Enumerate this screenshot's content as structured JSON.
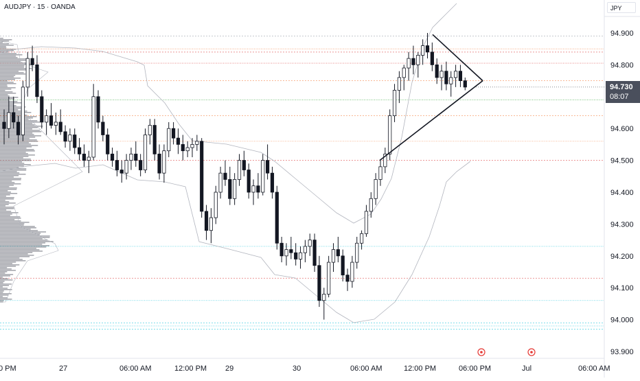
{
  "header": {
    "symbol": "AUDJPY · 15 · OANDA",
    "currency": "JPY"
  },
  "price_tag": {
    "price": "94.730",
    "countdown": "08:07"
  },
  "chart_data": {
    "type": "candlestick",
    "title": "AUDJPY · 15 · OANDA",
    "ylim": [
      93.88,
      94.98
    ],
    "y_ticks": [
      "94.900",
      "94.800",
      "94.700",
      "94.600",
      "94.500",
      "94.400",
      "94.300",
      "94.200",
      "94.100",
      "94.000",
      "93.900"
    ],
    "x_ticks": [
      "0 PM",
      "27",
      "06:00 AM",
      "12:00 PM",
      "29",
      "30",
      "06:00 AM",
      "12:00 PM",
      "06:00 PM",
      "Jul",
      "06:00 AM"
    ],
    "last_price": 94.73,
    "horizontal_levels": [
      {
        "price": 94.89,
        "color": "#b2b5be"
      },
      {
        "price": 94.85,
        "color": "#f7a072"
      },
      {
        "price": 94.84,
        "color": "#e57373"
      },
      {
        "price": 94.805,
        "color": "#e57373"
      },
      {
        "price": 94.75,
        "color": "#f7a072"
      },
      {
        "price": 94.69,
        "color": "#66bb6a"
      },
      {
        "price": 94.64,
        "color": "#f7a072"
      },
      {
        "price": 94.56,
        "color": "#f7a072"
      },
      {
        "price": 94.5,
        "color": "#e57373"
      },
      {
        "price": 94.23,
        "color": "#4dd0e1"
      },
      {
        "price": 94.13,
        "color": "#e57373"
      },
      {
        "price": 94.06,
        "color": "#4dd0e1"
      },
      {
        "price": 93.99,
        "color": "#4dd0e1"
      },
      {
        "price": 93.98,
        "color": "#4dd0e1"
      },
      {
        "price": 93.97,
        "color": "#4dd0e1"
      }
    ],
    "triangle_pattern": {
      "upper": [
        [
          94.895,
          94.75
        ]
      ],
      "lower": [
        [
          94.5,
          94.75
        ]
      ]
    },
    "event_markers": 2,
    "volume_profile": "left-side horizontal volume histogram",
    "envelope": "gray price channel band",
    "candles": [
      [
        94.62,
        94.66,
        94.55,
        94.6
      ],
      [
        94.6,
        94.7,
        94.57,
        94.65
      ],
      [
        94.65,
        94.7,
        94.6,
        94.62
      ],
      [
        94.62,
        94.64,
        94.55,
        94.58
      ],
      [
        94.58,
        94.75,
        94.56,
        94.73
      ],
      [
        94.73,
        94.84,
        94.7,
        94.82
      ],
      [
        94.82,
        94.86,
        94.78,
        94.8
      ],
      [
        94.8,
        94.83,
        94.68,
        94.7
      ],
      [
        94.7,
        94.72,
        94.6,
        94.62
      ],
      [
        94.62,
        94.66,
        94.58,
        94.64
      ],
      [
        94.64,
        94.68,
        94.6,
        94.61
      ],
      [
        94.61,
        94.65,
        94.58,
        94.62
      ],
      [
        94.62,
        94.66,
        94.58,
        94.59
      ],
      [
        94.59,
        94.61,
        94.54,
        94.56
      ],
      [
        94.56,
        94.6,
        94.53,
        94.58
      ],
      [
        94.58,
        94.6,
        94.52,
        94.54
      ],
      [
        94.54,
        94.57,
        94.5,
        94.52
      ],
      [
        94.52,
        94.55,
        94.48,
        94.5
      ],
      [
        94.5,
        94.53,
        94.46,
        94.51
      ],
      [
        94.51,
        94.74,
        94.5,
        94.7
      ],
      [
        94.7,
        94.72,
        94.6,
        94.62
      ],
      [
        94.62,
        94.64,
        94.56,
        94.58
      ],
      [
        94.58,
        94.6,
        94.5,
        94.52
      ],
      [
        94.52,
        94.54,
        94.48,
        94.5
      ],
      [
        94.5,
        94.53,
        94.45,
        94.47
      ],
      [
        94.47,
        94.5,
        94.43,
        94.46
      ],
      [
        94.46,
        94.52,
        94.44,
        94.5
      ],
      [
        94.5,
        94.54,
        94.47,
        94.52
      ],
      [
        94.52,
        94.56,
        94.48,
        94.5
      ],
      [
        94.5,
        94.52,
        94.45,
        94.47
      ],
      [
        94.47,
        94.6,
        94.46,
        94.58
      ],
      [
        94.58,
        94.63,
        94.55,
        94.61
      ],
      [
        94.61,
        94.63,
        94.5,
        94.52
      ],
      [
        94.52,
        94.55,
        94.44,
        94.46
      ],
      [
        94.46,
        94.55,
        94.43,
        94.53
      ],
      [
        94.53,
        94.62,
        94.51,
        94.6
      ],
      [
        94.6,
        94.62,
        94.55,
        94.57
      ],
      [
        94.57,
        94.6,
        94.52,
        94.55
      ],
      [
        94.55,
        94.58,
        94.5,
        94.53
      ],
      [
        94.53,
        94.56,
        94.51,
        94.54
      ],
      [
        94.54,
        94.57,
        94.51,
        94.55
      ],
      [
        94.55,
        94.58,
        94.53,
        94.56
      ],
      [
        94.56,
        94.57,
        94.32,
        94.34
      ],
      [
        94.34,
        94.36,
        94.25,
        94.28
      ],
      [
        94.28,
        94.35,
        94.24,
        94.32
      ],
      [
        94.32,
        94.42,
        94.3,
        94.4
      ],
      [
        94.4,
        94.48,
        94.38,
        94.46
      ],
      [
        94.46,
        94.5,
        94.42,
        94.44
      ],
      [
        94.44,
        94.48,
        94.36,
        94.38
      ],
      [
        94.38,
        94.46,
        94.36,
        94.44
      ],
      [
        94.44,
        94.52,
        94.42,
        94.5
      ],
      [
        94.5,
        94.53,
        94.45,
        94.47
      ],
      [
        94.47,
        94.49,
        94.38,
        94.4
      ],
      [
        94.4,
        94.44,
        94.36,
        94.42
      ],
      [
        94.42,
        94.46,
        94.38,
        94.4
      ],
      [
        94.4,
        94.52,
        94.39,
        94.5
      ],
      [
        94.5,
        94.55,
        94.44,
        94.46
      ],
      [
        94.46,
        94.48,
        94.38,
        94.4
      ],
      [
        94.4,
        94.42,
        94.22,
        94.24
      ],
      [
        94.24,
        94.26,
        94.18,
        94.2
      ],
      [
        94.2,
        94.24,
        94.17,
        94.22
      ],
      [
        94.22,
        94.26,
        94.19,
        94.21
      ],
      [
        94.21,
        94.24,
        94.17,
        94.19
      ],
      [
        94.19,
        94.23,
        94.16,
        94.21
      ],
      [
        94.21,
        94.25,
        94.18,
        94.23
      ],
      [
        94.23,
        94.27,
        94.2,
        94.25
      ],
      [
        94.25,
        94.27,
        94.15,
        94.17
      ],
      [
        94.17,
        94.2,
        94.04,
        94.06
      ],
      [
        94.06,
        94.1,
        94.0,
        94.08
      ],
      [
        94.08,
        94.2,
        94.07,
        94.18
      ],
      [
        94.18,
        94.24,
        94.15,
        94.22
      ],
      [
        94.22,
        94.26,
        94.18,
        94.2
      ],
      [
        94.2,
        94.22,
        94.12,
        94.14
      ],
      [
        94.14,
        94.16,
        94.09,
        94.12
      ],
      [
        94.12,
        94.2,
        94.1,
        94.18
      ],
      [
        94.18,
        94.26,
        94.16,
        94.24
      ],
      [
        94.24,
        94.28,
        94.22,
        94.27
      ],
      [
        94.27,
        94.36,
        94.26,
        94.34
      ],
      [
        94.34,
        94.4,
        94.32,
        94.38
      ],
      [
        94.38,
        94.46,
        94.36,
        94.44
      ],
      [
        94.44,
        94.5,
        94.42,
        94.48
      ],
      [
        94.48,
        94.54,
        94.46,
        94.52
      ],
      [
        94.52,
        94.66,
        94.5,
        94.64
      ],
      [
        94.64,
        94.74,
        94.62,
        94.72
      ],
      [
        94.72,
        94.78,
        94.68,
        94.76
      ],
      [
        94.76,
        94.8,
        94.72,
        94.79
      ],
      [
        94.79,
        94.84,
        94.75,
        94.82
      ],
      [
        94.82,
        94.86,
        94.77,
        94.8
      ],
      [
        94.8,
        94.84,
        94.76,
        94.83
      ],
      [
        94.83,
        94.88,
        94.8,
        94.86
      ],
      [
        94.86,
        94.9,
        94.82,
        94.84
      ],
      [
        94.84,
        94.87,
        94.78,
        94.8
      ],
      [
        94.8,
        94.82,
        94.74,
        94.76
      ],
      [
        94.76,
        94.8,
        94.72,
        94.78
      ],
      [
        94.78,
        94.81,
        94.72,
        94.74
      ],
      [
        94.74,
        94.78,
        94.7,
        94.76
      ],
      [
        94.76,
        94.8,
        94.73,
        94.78
      ],
      [
        94.78,
        94.8,
        94.73,
        94.75
      ],
      [
        94.75,
        94.76,
        94.72,
        94.73
      ]
    ]
  }
}
